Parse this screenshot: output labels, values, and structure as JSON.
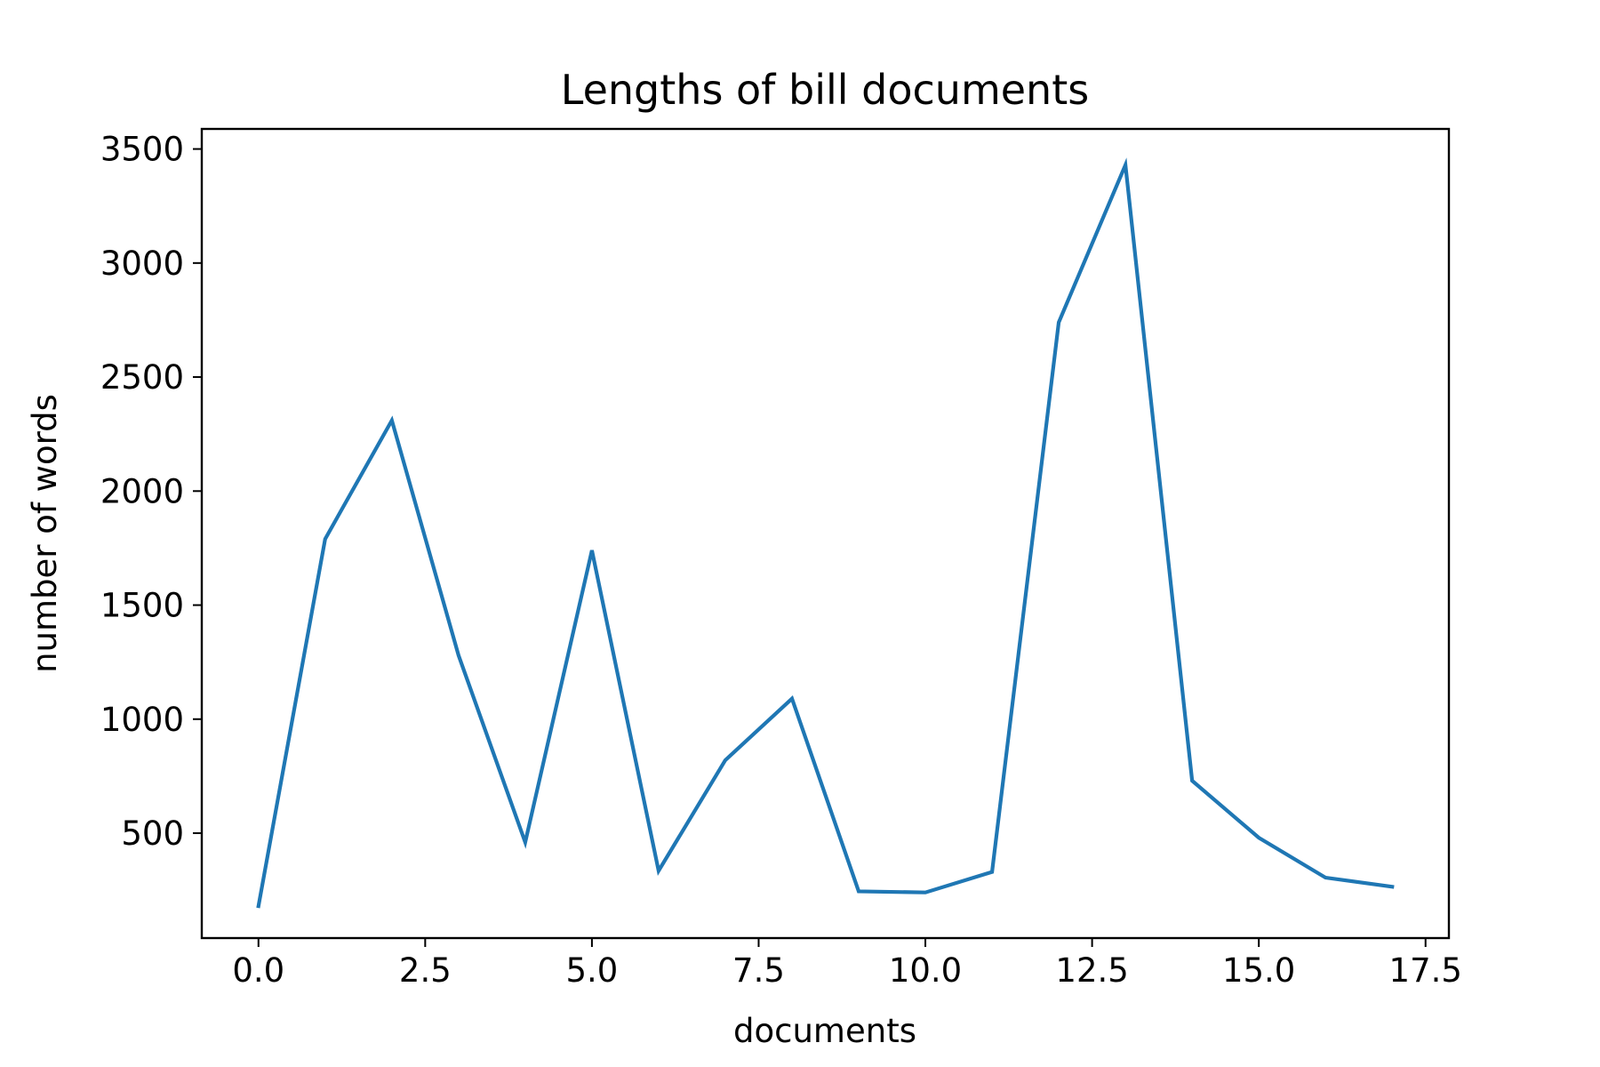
{
  "chart_data": {
    "type": "line",
    "title": "Lengths of bill documents",
    "xlabel": "documents",
    "ylabel": "number of words",
    "x": [
      0,
      1,
      2,
      3,
      4,
      5,
      6,
      7,
      8,
      9,
      10,
      11,
      12,
      13,
      14,
      15,
      16,
      17
    ],
    "series": [
      {
        "values": [
          180,
          1790,
          2310,
          1280,
          460,
          1740,
          335,
          820,
          1090,
          245,
          240,
          330,
          2740,
          3430,
          730,
          480,
          305,
          265
        ]
      }
    ],
    "xlim": [
      -0.85,
      17.85
    ],
    "ylim": [
      40,
      3588
    ],
    "xticks": [
      0,
      2.5,
      5,
      7.5,
      10,
      12.5,
      15,
      17.5
    ],
    "xtick_labels": [
      "0.0",
      "2.5",
      "5.0",
      "7.5",
      "10.0",
      "12.5",
      "15.0",
      "17.5"
    ],
    "yticks": [
      500,
      1000,
      1500,
      2000,
      2500,
      3000,
      3500
    ],
    "ytick_labels": [
      "500",
      "1000",
      "1500",
      "2000",
      "2500",
      "3000",
      "3500"
    ],
    "grid": false,
    "legend": "none",
    "colors": {
      "line": "#1f77b4",
      "axes": "#000000",
      "background": "#ffffff"
    }
  }
}
